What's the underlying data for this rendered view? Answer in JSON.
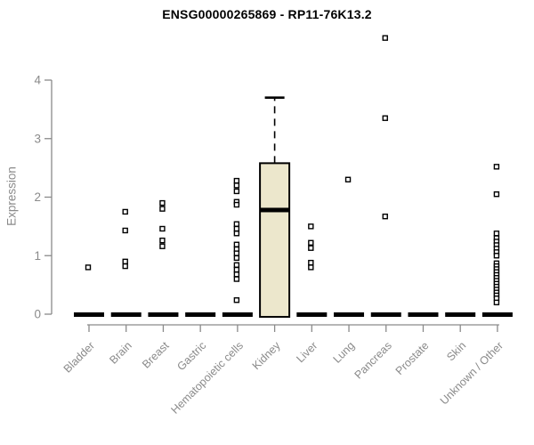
{
  "page": {
    "title": "ENSG00000265869 - RP11-76K13.2"
  },
  "colors": {
    "background": "#ffffff",
    "title_text": "#000000",
    "axis_line": "#8a8a8a",
    "axis_text": "#8a8a8a",
    "box_fill": "#ece7cc",
    "box_stroke": "#000000",
    "point_stroke": "#000000",
    "point_fill": "#ffffff",
    "zero_bar": "#000000"
  },
  "chart_data": {
    "type": "boxplot",
    "title": "ENSG00000265869 - RP11-76K13.2",
    "xlabel": "",
    "ylabel": "Expression",
    "ylim": [
      0,
      4
    ],
    "yticks": [
      0,
      1,
      2,
      3,
      4
    ],
    "grid": false,
    "legend": "none",
    "point_style": "open-square",
    "categories": [
      "Bladder",
      "Brain",
      "Breast",
      "Gastric",
      "Hematopoietic cells",
      "Kidney",
      "Liver",
      "Lung",
      "Pancreas",
      "Prostate",
      "Skin",
      "Unknown / Other"
    ],
    "groups": [
      {
        "label": "Bladder",
        "box": {
          "low": 0,
          "q1": 0,
          "median": 0,
          "q3": 0,
          "high": 0
        },
        "points": [
          0.8
        ]
      },
      {
        "label": "Brain",
        "box": {
          "low": 0,
          "q1": 0,
          "median": 0,
          "q3": 0,
          "high": 0
        },
        "points": [
          1.75,
          1.43,
          0.9,
          0.82
        ]
      },
      {
        "label": "Breast",
        "box": {
          "low": 0,
          "q1": 0,
          "median": 0,
          "q3": 0,
          "high": 0
        },
        "points": [
          1.9,
          1.8,
          1.46,
          1.26,
          1.16
        ]
      },
      {
        "label": "Gastric",
        "box": {
          "low": 0,
          "q1": 0,
          "median": 0,
          "q3": 0,
          "high": 0
        },
        "points": []
      },
      {
        "label": "Hematopoietic cells",
        "box": {
          "low": 0,
          "q1": 0,
          "median": 0,
          "q3": 0,
          "high": 0
        },
        "points": [
          2.28,
          2.2,
          2.1,
          1.92,
          1.87,
          1.54,
          1.46,
          1.38,
          1.19,
          1.11,
          1.04,
          0.96,
          0.84,
          0.76,
          0.68,
          0.6,
          0.24
        ]
      },
      {
        "label": "Kidney",
        "box": {
          "low": 0,
          "q1": 0,
          "median": 1.78,
          "q3": 2.58,
          "high": 3.7
        },
        "points": []
      },
      {
        "label": "Liver",
        "box": {
          "low": 0,
          "q1": 0,
          "median": 0,
          "q3": 0,
          "high": 0
        },
        "points": [
          1.5,
          1.22,
          1.13,
          0.88,
          0.8
        ]
      },
      {
        "label": "Lung",
        "box": {
          "low": 0,
          "q1": 0,
          "median": 0,
          "q3": 0,
          "high": 0
        },
        "points": [
          2.3
        ]
      },
      {
        "label": "Pancreas",
        "box": {
          "low": 0,
          "q1": 0,
          "median": 0,
          "q3": 0,
          "high": 0
        },
        "points": [
          4.72,
          3.35,
          1.67
        ]
      },
      {
        "label": "Prostate",
        "box": {
          "low": 0,
          "q1": 0,
          "median": 0,
          "q3": 0,
          "high": 0
        },
        "points": []
      },
      {
        "label": "Skin",
        "box": {
          "low": 0,
          "q1": 0,
          "median": 0,
          "q3": 0,
          "high": 0
        },
        "points": []
      },
      {
        "label": "Unknown / Other",
        "box": {
          "low": 0,
          "q1": 0,
          "median": 0,
          "q3": 0,
          "high": 0
        },
        "points": [
          2.52,
          2.05,
          1.38,
          1.3,
          1.24,
          1.18,
          1.12,
          1.06,
          1.0,
          0.87,
          0.82,
          0.77,
          0.72,
          0.67,
          0.62,
          0.57,
          0.52,
          0.47,
          0.42,
          0.37,
          0.32,
          0.27,
          0.2
        ]
      }
    ]
  }
}
